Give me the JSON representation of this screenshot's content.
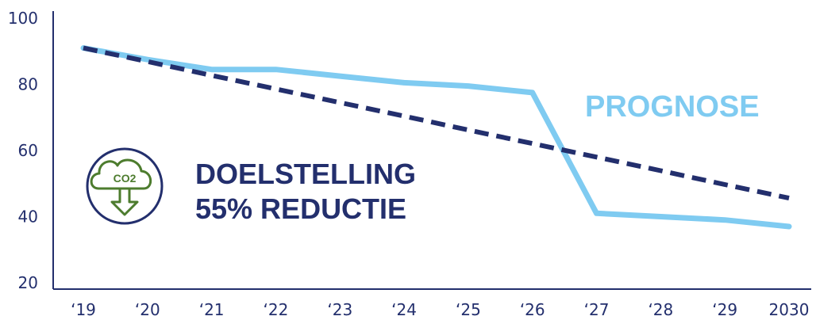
{
  "chart_data": {
    "type": "line",
    "x": [
      "‘19",
      "‘20",
      "‘21",
      "‘22",
      "‘23",
      "‘24",
      "‘25",
      "‘26",
      "‘27",
      "‘28",
      "‘29",
      "2030"
    ],
    "series": [
      {
        "name": "PROGNOSE",
        "style": "solid",
        "color": "#7fcbf1",
        "values": [
          91,
          87.5,
          84.5,
          84.5,
          82.5,
          80.5,
          79.5,
          77.5,
          41,
          40,
          39,
          37
        ]
      },
      {
        "name": "DOELSTELLING 55% REDUCTIE",
        "style": "dashed",
        "color": "#232f6d",
        "values": [
          91,
          86.9,
          82.7,
          78.6,
          74.5,
          70.4,
          66.2,
          62.1,
          58,
          53.9,
          49.7,
          45.6
        ]
      }
    ],
    "yticks": [
      "100",
      "80",
      "60",
      "40",
      "20"
    ],
    "ylim": [
      20,
      100
    ],
    "grid": false,
    "labels": {
      "target_line_1": "DOELSTELLING",
      "target_line_2": "55% REDUCTIE",
      "forecast": "PROGNOSE",
      "co2_icon_text": "CO2"
    },
    "colors": {
      "axis": "#232f6d",
      "icon": "#4d7c2e",
      "text": "#232f6d",
      "forecast": "#7fcbf1"
    }
  }
}
